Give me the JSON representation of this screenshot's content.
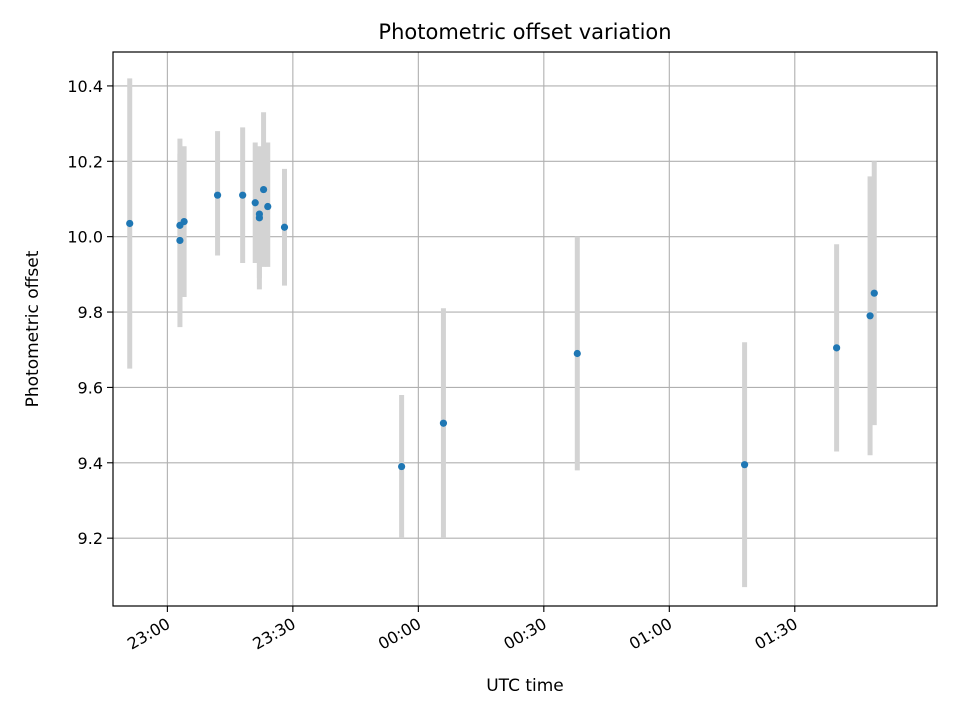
{
  "chart_data": {
    "type": "scatter",
    "title": "Photometric offset variation",
    "xlabel": "UTC time",
    "ylabel": "Photometric offset",
    "grid": true,
    "legend": "none",
    "x_axis_kind": "time",
    "xlim": [
      "22:47",
      "02:04"
    ],
    "ylim": [
      9.02,
      10.49
    ],
    "x_ticks": [
      "23:00",
      "23:30",
      "00:00",
      "00:30",
      "01:00",
      "01:30"
    ],
    "y_ticks": [
      "9.2",
      "9.4",
      "9.6",
      "9.8",
      "10.0",
      "10.2",
      "10.4"
    ],
    "colors": {
      "point": "#1f77b4",
      "errorbar": "#d3d3d3",
      "grid": "#b0b0b0"
    },
    "points": [
      {
        "x": "22:51",
        "y": 10.035,
        "ylow": 9.65,
        "yhigh": 10.42
      },
      {
        "x": "23:03",
        "y": 9.99,
        "ylow": 9.76,
        "yhigh": 10.22
      },
      {
        "x": "23:03",
        "y": 10.03,
        "ylow": 9.8,
        "yhigh": 10.26
      },
      {
        "x": "23:04",
        "y": 10.04,
        "ylow": 9.84,
        "yhigh": 10.24
      },
      {
        "x": "23:12",
        "y": 10.11,
        "ylow": 9.95,
        "yhigh": 10.28
      },
      {
        "x": "23:18",
        "y": 10.11,
        "ylow": 9.93,
        "yhigh": 10.29
      },
      {
        "x": "23:21",
        "y": 10.09,
        "ylow": 9.93,
        "yhigh": 10.25
      },
      {
        "x": "23:22",
        "y": 10.05,
        "ylow": 9.86,
        "yhigh": 10.24
      },
      {
        "x": "23:22",
        "y": 10.06,
        "ylow": 9.89,
        "yhigh": 10.23
      },
      {
        "x": "23:23",
        "y": 10.125,
        "ylow": 9.92,
        "yhigh": 10.33
      },
      {
        "x": "23:24",
        "y": 10.08,
        "ylow": 9.92,
        "yhigh": 10.25
      },
      {
        "x": "23:28",
        "y": 10.025,
        "ylow": 9.87,
        "yhigh": 10.18
      },
      {
        "x": "23:56",
        "y": 9.39,
        "ylow": 9.2,
        "yhigh": 9.58
      },
      {
        "x": "00:06",
        "y": 9.505,
        "ylow": 9.2,
        "yhigh": 9.81
      },
      {
        "x": "00:38",
        "y": 9.69,
        "ylow": 9.38,
        "yhigh": 10.0
      },
      {
        "x": "01:18",
        "y": 9.395,
        "ylow": 9.07,
        "yhigh": 9.72
      },
      {
        "x": "01:40",
        "y": 9.705,
        "ylow": 9.43,
        "yhigh": 9.98
      },
      {
        "x": "01:48",
        "y": 9.79,
        "ylow": 9.42,
        "yhigh": 10.16
      },
      {
        "x": "01:49",
        "y": 9.85,
        "ylow": 9.5,
        "yhigh": 10.2
      }
    ]
  }
}
